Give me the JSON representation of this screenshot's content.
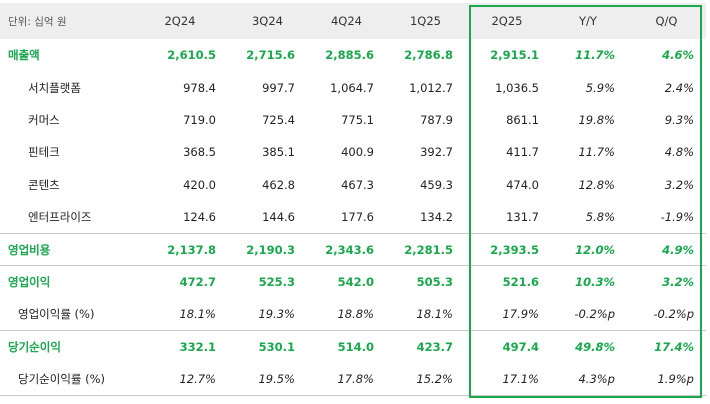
{
  "unit_label": "단위: 십억 원",
  "columns": [
    "2Q24",
    "3Q24",
    "4Q24",
    "1Q25",
    "2Q25",
    "Y/Y",
    "Q/Q"
  ],
  "rows": [
    {
      "label": "매출액",
      "type": "main",
      "values": [
        "2,610.5",
        "2,715.6",
        "2,885.6",
        "2,786.8",
        "2,915.1",
        "11.7%",
        "4.6%"
      ]
    },
    {
      "label": "서치플랫폼",
      "type": "sub",
      "values": [
        "978.4",
        "997.7",
        "1,064.7",
        "1,012.7",
        "1,036.5",
        "5.9%",
        "2.4%"
      ]
    },
    {
      "label": "커머스",
      "type": "sub",
      "values": [
        "719.0",
        "725.4",
        "775.1",
        "787.9",
        "861.1",
        "19.8%",
        "9.3%"
      ]
    },
    {
      "label": "핀테크",
      "type": "sub",
      "values": [
        "368.5",
        "385.1",
        "400.9",
        "392.7",
        "411.7",
        "11.7%",
        "4.8%"
      ]
    },
    {
      "label": "콘텐츠",
      "type": "sub",
      "values": [
        "420.0",
        "462.8",
        "467.3",
        "459.3",
        "474.0",
        "12.8%",
        "3.2%"
      ]
    },
    {
      "label": "엔터프라이즈",
      "type": "sub",
      "values": [
        "124.6",
        "144.6",
        "177.6",
        "134.2",
        "131.7",
        "5.8%",
        "-1.9%"
      ]
    },
    {
      "label": "영업비용",
      "type": "main",
      "values": [
        "2,137.8",
        "2,190.3",
        "2,343.6",
        "2,281.5",
        "2,393.5",
        "12.0%",
        "4.9%"
      ]
    },
    {
      "label": "영업이익",
      "type": "main",
      "values": [
        "472.7",
        "525.3",
        "542.0",
        "505.3",
        "521.6",
        "10.3%",
        "3.2%"
      ]
    },
    {
      "label": "영업이익률 (%)",
      "type": "pct",
      "values": [
        "18.1%",
        "19.3%",
        "18.8%",
        "18.1%",
        "17.9%",
        "-0.2%p",
        "-0.2%p"
      ]
    },
    {
      "label": "당기순이익",
      "type": "main",
      "values": [
        "332.1",
        "530.1",
        "514.0",
        "423.7",
        "497.4",
        "49.8%",
        "17.4%"
      ]
    },
    {
      "label": "당기순이익률 (%)",
      "type": "pct",
      "values": [
        "12.7%",
        "19.5%",
        "17.8%",
        "15.2%",
        "17.1%",
        "4.3%p",
        "1.9%p"
      ]
    }
  ],
  "colors": {
    "accent": "#1aa74d",
    "header_bg": "#eeeeee"
  }
}
